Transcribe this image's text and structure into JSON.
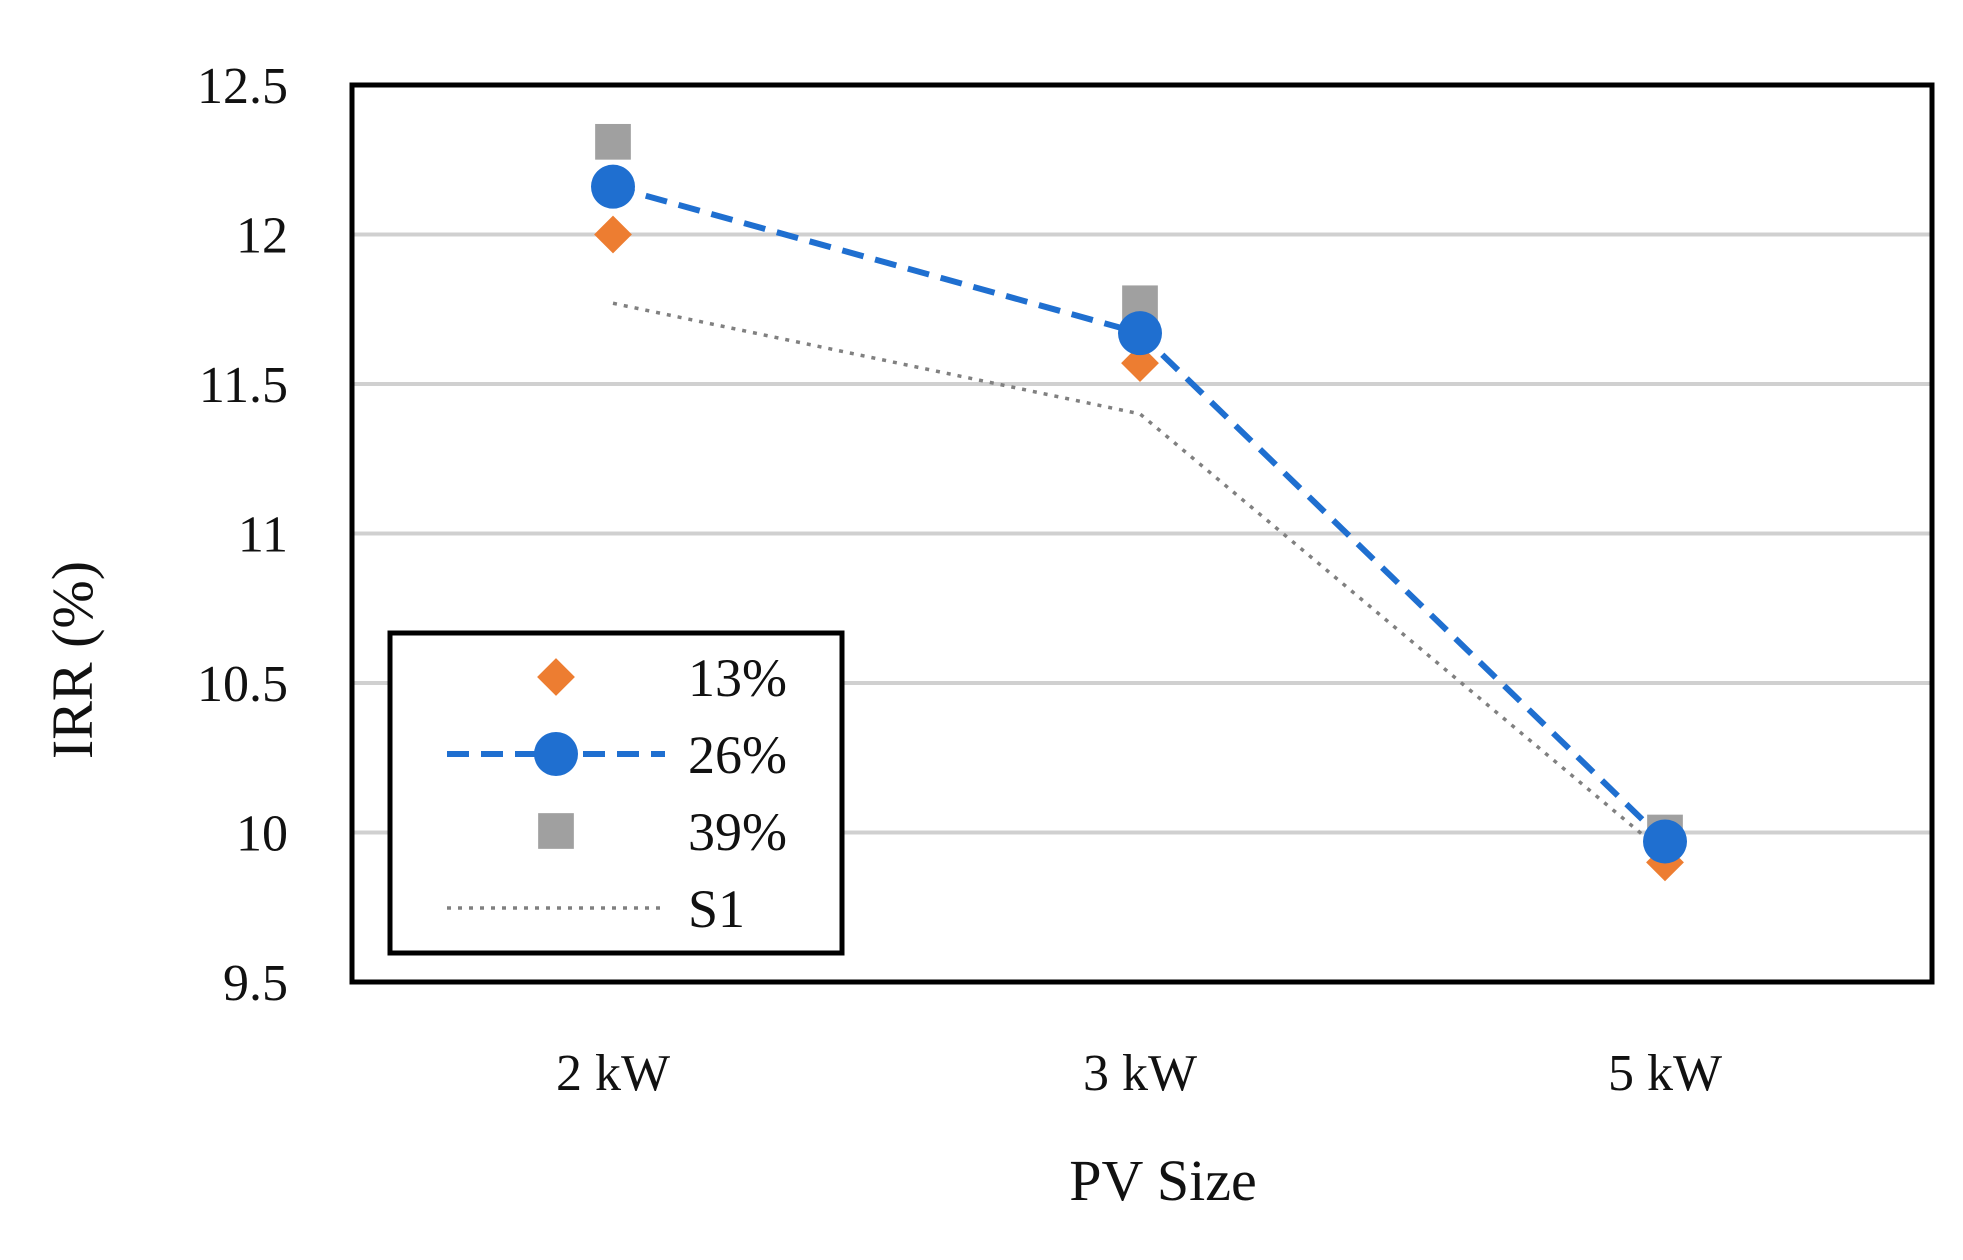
{
  "chart_data": {
    "type": "line",
    "title": "",
    "xlabel": "PV Size",
    "ylabel": "IRR (%)",
    "categories": [
      "2 kW",
      "3 kW",
      "5 kW"
    ],
    "ylim": [
      9.5,
      12.5
    ],
    "yticks": [
      9.5,
      10,
      10.5,
      11,
      11.5,
      12,
      12.5
    ],
    "ytick_labels": [
      "9.5",
      "10",
      "10.5",
      "11",
      "11.5",
      "12",
      "12.5"
    ],
    "grid": true,
    "legend_position": "bottom-left",
    "series": [
      {
        "name": "13%",
        "values": [
          12.0,
          11.57,
          9.9
        ],
        "color": "#ED7D31",
        "marker": "diamond",
        "line": "none"
      },
      {
        "name": "26%",
        "values": [
          12.16,
          11.67,
          9.97
        ],
        "color": "#1F6FD0",
        "marker": "circle",
        "line": "dashed"
      },
      {
        "name": "39%",
        "values": [
          12.31,
          11.77,
          10.0
        ],
        "color": "#A0A0A0",
        "marker": "square",
        "line": "none"
      },
      {
        "name": "S1",
        "values": [
          11.77,
          11.4,
          9.93
        ],
        "color": "#808080",
        "marker": "none",
        "line": "dotted"
      }
    ]
  }
}
